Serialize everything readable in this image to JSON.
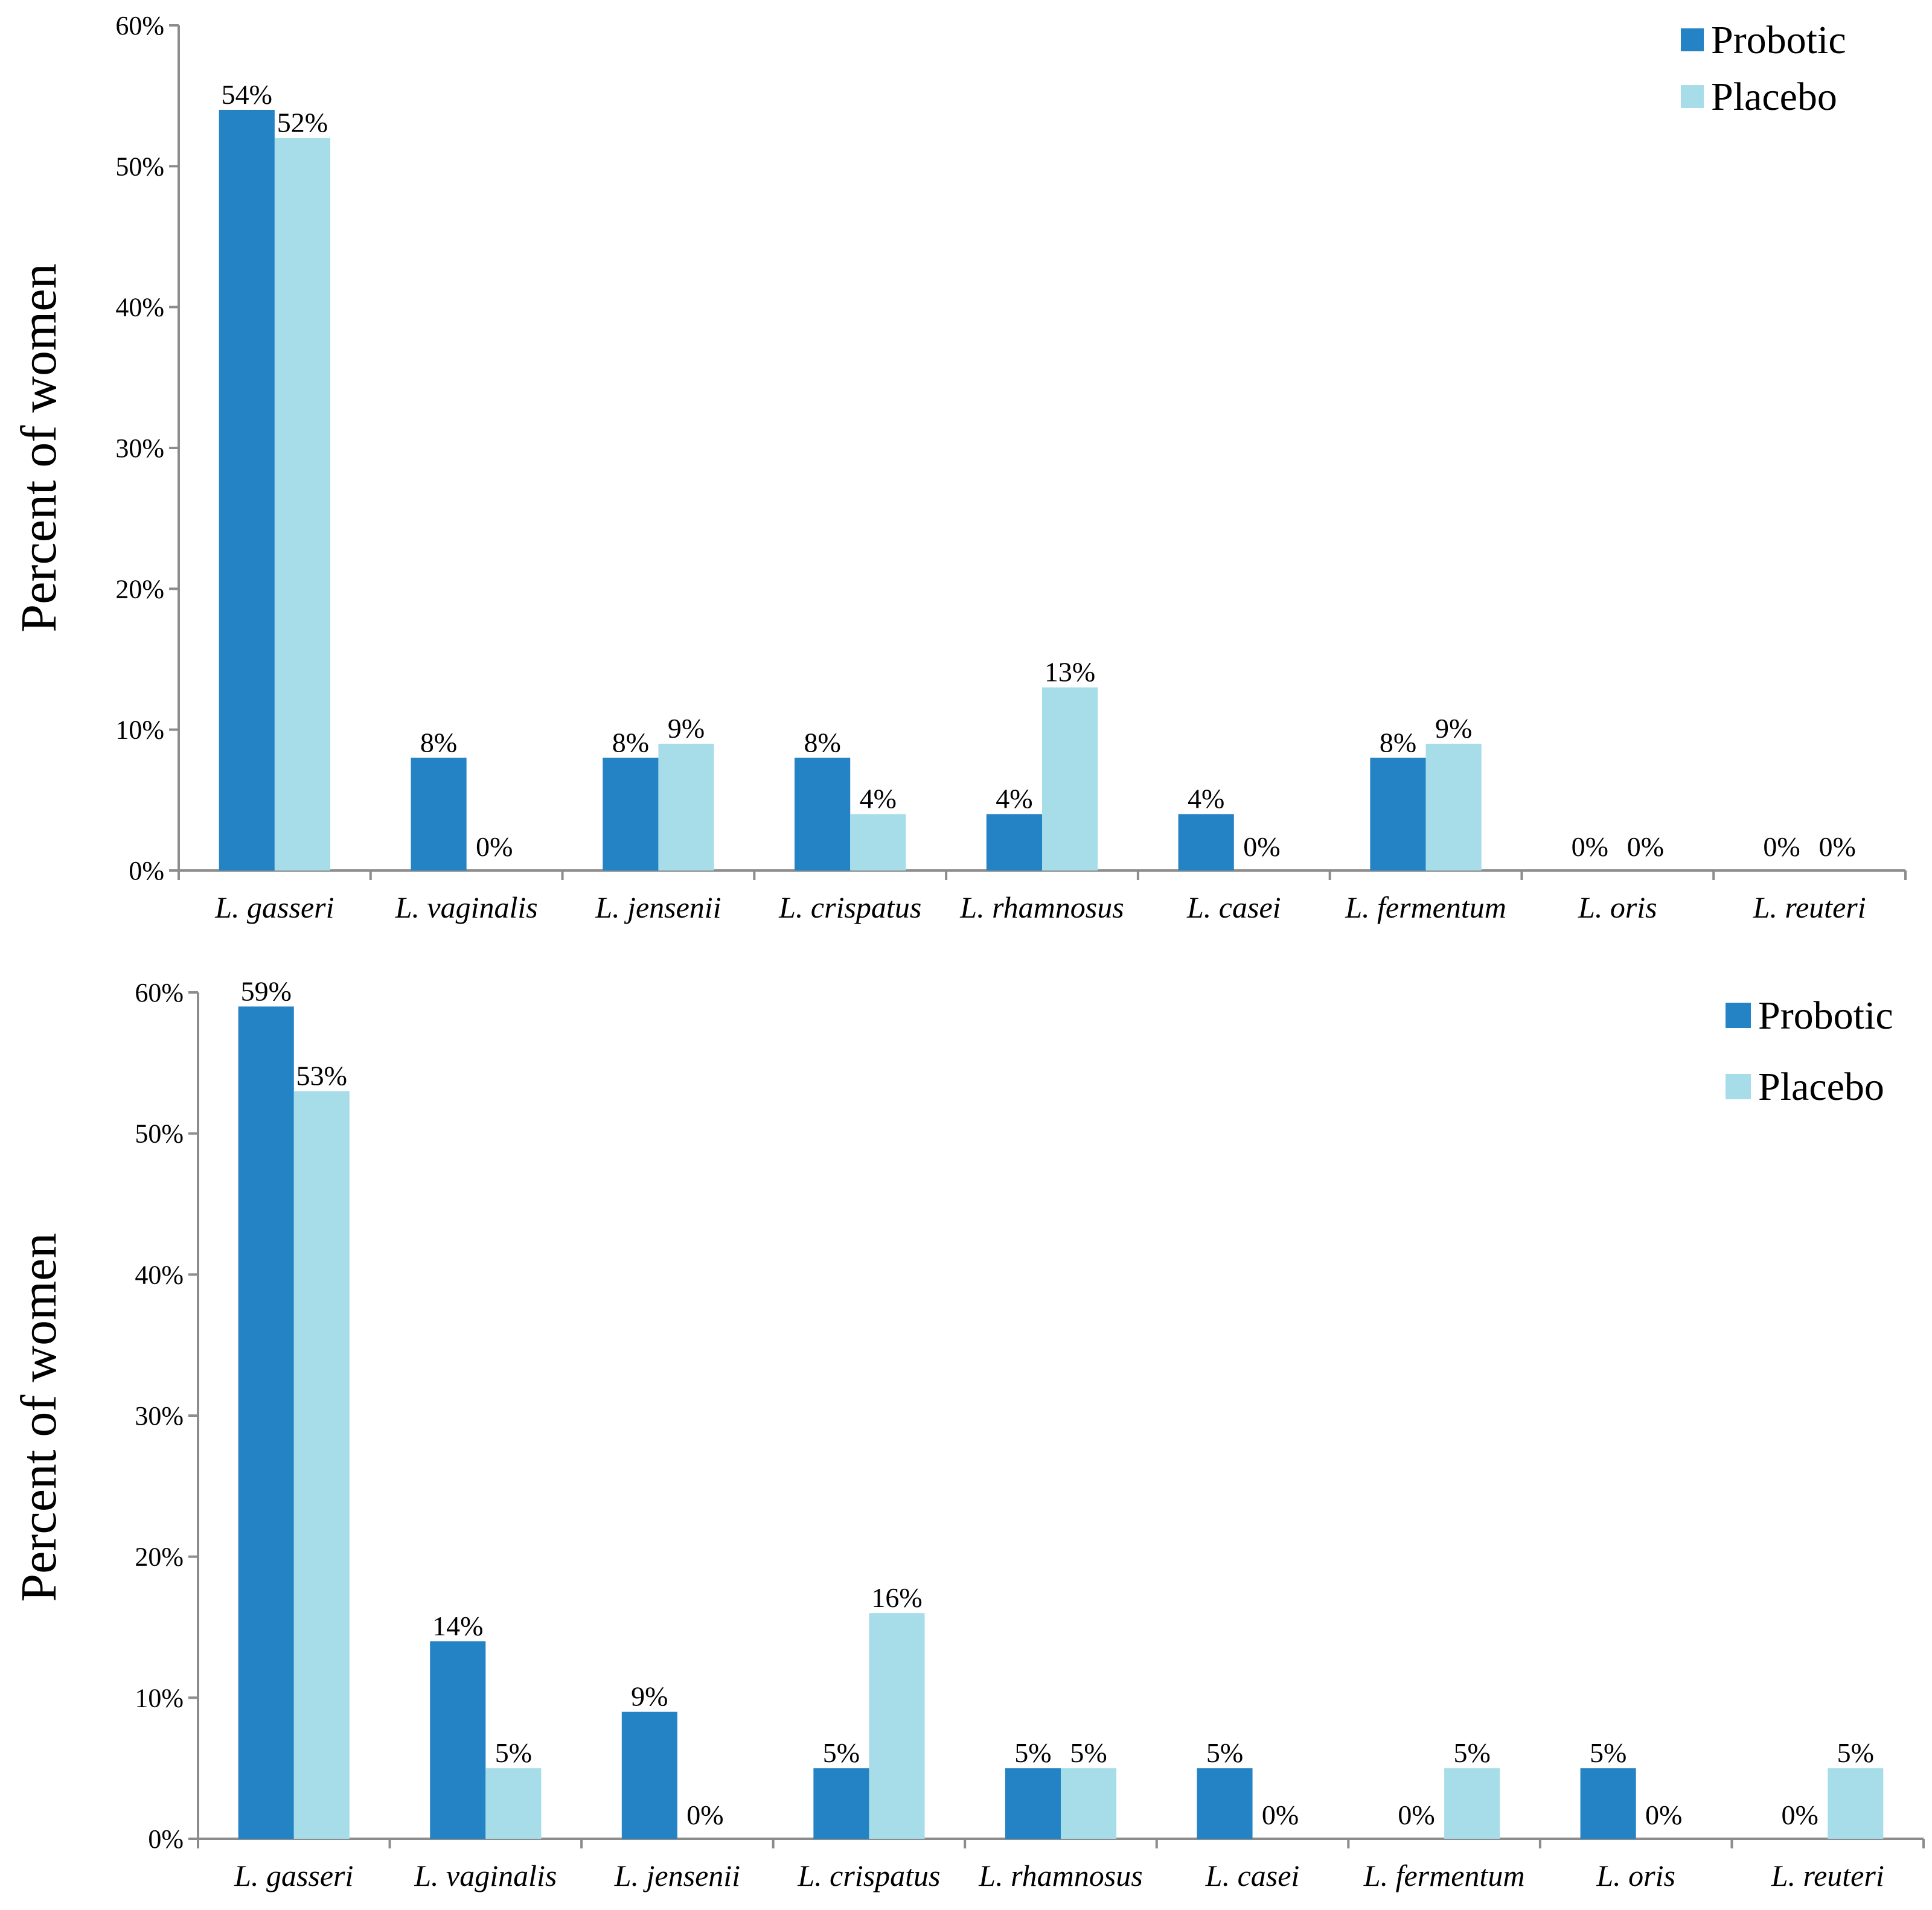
{
  "colors": {
    "probiotic": "#2383c4",
    "placebo": "#a6dde9"
  },
  "chart_data": [
    {
      "type": "bar",
      "ylabel": "Percent of women",
      "ylim": [
        0,
        60
      ],
      "yticks": [
        0,
        10,
        20,
        30,
        40,
        50,
        60
      ],
      "ytick_labels": [
        "0%",
        "10%",
        "20%",
        "30%",
        "40%",
        "50%",
        "60%"
      ],
      "legend": {
        "position": "top-right",
        "entries": [
          "Probotic",
          "Placebo"
        ]
      },
      "categories": [
        "L. gasseri",
        "L. vaginalis",
        "L. jensenii",
        "L. crispatus",
        "L. rhamnosus",
        "L. casei",
        "L. fermentum",
        "L. oris",
        "L. reuteri"
      ],
      "series": [
        {
          "name": "Probotic",
          "values": [
            54,
            8,
            8,
            8,
            4,
            4,
            8,
            0,
            0
          ],
          "labels": [
            "54%",
            "8%",
            "8%",
            "8%",
            "4%",
            "4%",
            "8%",
            "0%",
            "0%"
          ]
        },
        {
          "name": "Placebo",
          "values": [
            52,
            0,
            9,
            4,
            13,
            0,
            9,
            0,
            0
          ],
          "labels": [
            "52%",
            "0%",
            "9%",
            "4%",
            "13%",
            "0%",
            "9%",
            "0%",
            "0%"
          ]
        }
      ]
    },
    {
      "type": "bar",
      "ylabel": "Percent of women",
      "ylim": [
        0,
        60
      ],
      "yticks": [
        0,
        10,
        20,
        30,
        40,
        50,
        60
      ],
      "ytick_labels": [
        "0%",
        "10%",
        "20%",
        "30%",
        "40%",
        "50%",
        "60%"
      ],
      "legend": {
        "position": "top-right",
        "entries": [
          "Probotic",
          "Placebo"
        ]
      },
      "categories": [
        "L. gasseri",
        "L. vaginalis",
        "L. jensenii",
        "L. crispatus",
        "L. rhamnosus",
        "L. casei",
        "L. fermentum",
        "L. oris",
        "L. reuteri"
      ],
      "series": [
        {
          "name": "Probotic",
          "values": [
            59,
            14,
            9,
            5,
            5,
            5,
            0,
            5,
            0
          ],
          "labels": [
            "59%",
            "14%",
            "9%",
            "5%",
            "5%",
            "5%",
            "0%",
            "5%",
            "0%"
          ]
        },
        {
          "name": "Placebo",
          "values": [
            53,
            5,
            0,
            16,
            5,
            0,
            5,
            0,
            5
          ],
          "labels": [
            "53%",
            "5%",
            "0%",
            "16%",
            "5%",
            "0%",
            "5%",
            "0%",
            "5%"
          ]
        }
      ]
    }
  ]
}
